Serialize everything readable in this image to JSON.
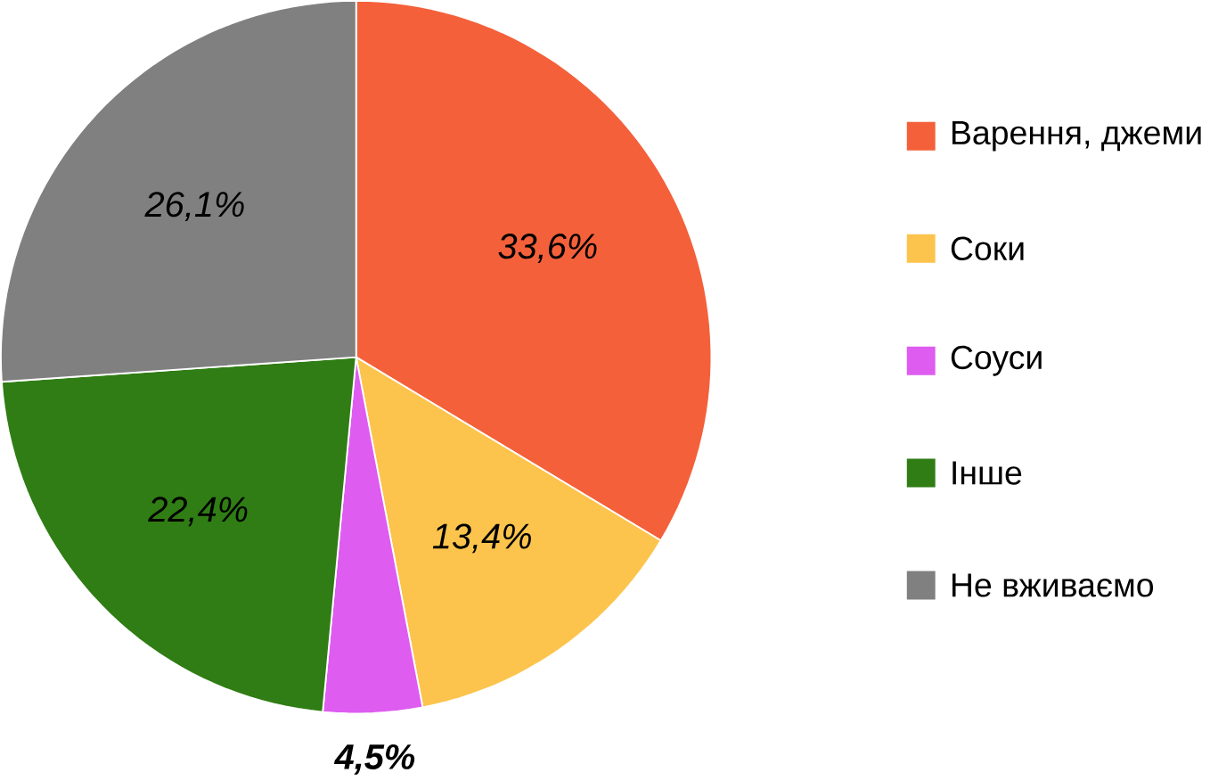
{
  "chart_data": {
    "type": "pie",
    "categories": [
      "Варення, джеми",
      "Соки",
      "Соуси",
      "Інше",
      "Не вживаємо"
    ],
    "values": [
      33.6,
      13.4,
      4.5,
      22.4,
      26.1
    ],
    "colors": [
      "#f4603a",
      "#fcc44c",
      "#de5cf0",
      "#2f7d14",
      "#808080"
    ],
    "value_labels": [
      "33,6%",
      "13,4%",
      "4,5%",
      "22,4%",
      "26,1%"
    ],
    "legend": "right"
  }
}
